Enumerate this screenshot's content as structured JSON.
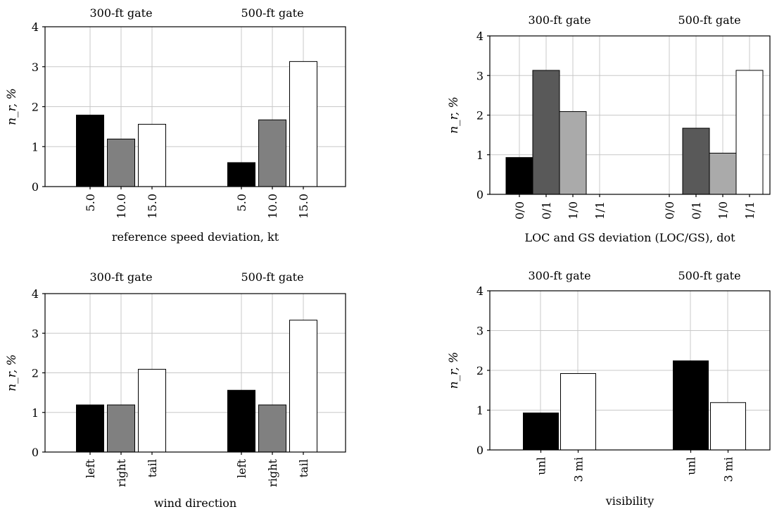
{
  "y_tick_labels": [
    "0",
    "1",
    "2",
    "3",
    "4"
  ],
  "colors": {
    "black": "#000000",
    "darkgray": "#595959",
    "gray": "#808080",
    "lightgray": "#aaaaaa",
    "white": "#ffffff",
    "grid": "#c8c8c8"
  },
  "chart_data": [
    {
      "type": "bar",
      "ylabel": "n_r, %",
      "xlabel": "reference speed deviation, kt",
      "ylim": [
        0,
        4
      ],
      "grid": true,
      "groups": [
        {
          "title": "300-ft gate",
          "categories": [
            "5.0",
            "10.0",
            "15.0"
          ],
          "values": [
            1.79,
            1.19,
            1.56
          ],
          "colors": [
            "black",
            "gray",
            "white"
          ]
        },
        {
          "title": "500-ft gate",
          "categories": [
            "5.0",
            "10.0",
            "15.0"
          ],
          "values": [
            0.6,
            1.67,
            3.13
          ],
          "colors": [
            "black",
            "gray",
            "white"
          ]
        }
      ]
    },
    {
      "type": "bar",
      "ylabel": "n_r, %",
      "xlabel": "LOC and GS deviation (LOC/GS), dot",
      "ylim": [
        0,
        4
      ],
      "grid": true,
      "groups": [
        {
          "title": "300-ft gate",
          "categories": [
            "0/0",
            "0/1",
            "1/0",
            "1/1"
          ],
          "values": [
            0.93,
            3.13,
            2.09,
            0
          ],
          "colors": [
            "black",
            "darkgray",
            "lightgray",
            "white"
          ]
        },
        {
          "title": "500-ft gate",
          "categories": [
            "0/0",
            "0/1",
            "1/0",
            "1/1"
          ],
          "values": [
            0,
            1.67,
            1.04,
            3.13
          ],
          "colors": [
            "black",
            "darkgray",
            "lightgray",
            "white"
          ]
        }
      ]
    },
    {
      "type": "bar",
      "ylabel": "n_r, %",
      "xlabel": "wind direction",
      "ylim": [
        0,
        4
      ],
      "grid": true,
      "groups": [
        {
          "title": "300-ft gate",
          "categories": [
            "left",
            "right",
            "tail"
          ],
          "values": [
            1.19,
            1.19,
            2.09
          ],
          "colors": [
            "black",
            "gray",
            "white"
          ]
        },
        {
          "title": "500-ft gate",
          "categories": [
            "left",
            "right",
            "tail"
          ],
          "values": [
            1.56,
            1.19,
            3.33
          ],
          "colors": [
            "black",
            "gray",
            "white"
          ]
        }
      ]
    },
    {
      "type": "bar",
      "ylabel": "n_r, %",
      "xlabel": "visibility",
      "ylim": [
        0,
        4
      ],
      "grid": true,
      "groups": [
        {
          "title": "300-ft gate",
          "categories": [
            "unl",
            "3 mi"
          ],
          "values": [
            0.93,
            1.92
          ],
          "colors": [
            "black",
            "white"
          ]
        },
        {
          "title": "500-ft gate",
          "categories": [
            "unl",
            "3 mi"
          ],
          "values": [
            2.24,
            1.19
          ],
          "colors": [
            "black",
            "white"
          ]
        }
      ]
    }
  ]
}
